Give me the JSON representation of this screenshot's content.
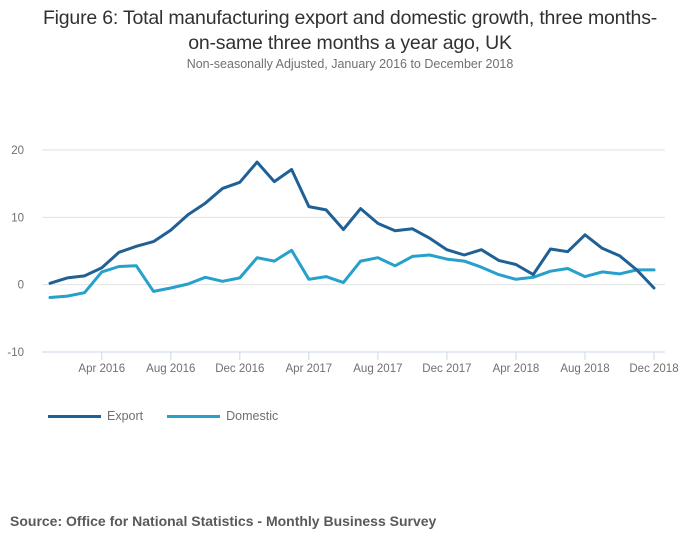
{
  "chart_data": {
    "type": "line",
    "title": "Figure 6: Total manufacturing export and domestic growth, three months-on-same three months a year ago, UK",
    "title_lines": [
      "Figure 6: Total manufacturing export and domestic growth, three months-",
      "on-same three months a year ago, UK"
    ],
    "subtitle": "Non-seasonally Adjusted, January 2016 to December 2018",
    "xlabel": "",
    "ylabel": "",
    "ylim": [
      -10,
      20
    ],
    "yticks": [
      20,
      10,
      0,
      -10
    ],
    "ytick_labels": [
      "20",
      "10",
      "0",
      "-10"
    ],
    "grid": true,
    "x": [
      "Jan 2016",
      "Feb 2016",
      "Mar 2016",
      "Apr 2016",
      "May 2016",
      "Jun 2016",
      "Jul 2016",
      "Aug 2016",
      "Sep 2016",
      "Oct 2016",
      "Nov 2016",
      "Dec 2016",
      "Jan 2017",
      "Feb 2017",
      "Mar 2017",
      "Apr 2017",
      "May 2017",
      "Jun 2017",
      "Jul 2017",
      "Aug 2017",
      "Sep 2017",
      "Oct 2017",
      "Nov 2017",
      "Dec 2017",
      "Jan 2018",
      "Feb 2018",
      "Mar 2018",
      "Apr 2018",
      "May 2018",
      "Jun 2018",
      "Jul 2018",
      "Aug 2018",
      "Sep 2018",
      "Oct 2018",
      "Nov 2018",
      "Dec 2018"
    ],
    "xtick_labels": [
      {
        "index": 3,
        "label": "Apr 2016"
      },
      {
        "index": 7,
        "label": "Aug 2016"
      },
      {
        "index": 11,
        "label": "Dec 2016"
      },
      {
        "index": 15,
        "label": "Apr 2017"
      },
      {
        "index": 19,
        "label": "Aug 2017"
      },
      {
        "index": 23,
        "label": "Dec 2017"
      },
      {
        "index": 27,
        "label": "Apr 2018"
      },
      {
        "index": 31,
        "label": "Aug 2018"
      },
      {
        "index": 35,
        "label": "Dec 2018"
      }
    ],
    "legend_position": "bottom-left",
    "series": [
      {
        "name": "Export",
        "color": "#206095",
        "values": [
          0.2,
          1.0,
          1.3,
          2.5,
          4.8,
          5.7,
          6.4,
          8.1,
          10.4,
          12.1,
          14.3,
          15.2,
          18.2,
          15.3,
          17.1,
          11.6,
          11.1,
          8.2,
          11.3,
          9.1,
          8.0,
          8.3,
          6.9,
          5.2,
          4.4,
          5.2,
          3.6,
          3.0,
          1.5,
          5.3,
          4.9,
          7.4,
          5.4,
          4.3,
          2.2,
          -0.5
        ]
      },
      {
        "name": "Domestic",
        "color": "#27a0cc",
        "values": [
          -1.9,
          -1.7,
          -1.2,
          1.9,
          2.7,
          2.8,
          -1.0,
          -0.5,
          0.1,
          1.1,
          0.5,
          1.0,
          4.0,
          3.5,
          5.1,
          0.8,
          1.2,
          0.3,
          3.5,
          4.0,
          2.8,
          4.2,
          4.4,
          3.8,
          3.5,
          2.6,
          1.5,
          0.8,
          1.1,
          2.0,
          2.4,
          1.2,
          1.9,
          1.6,
          2.2,
          2.2
        ]
      }
    ]
  },
  "source": "Source: Office for National Statistics - Monthly Business Survey"
}
